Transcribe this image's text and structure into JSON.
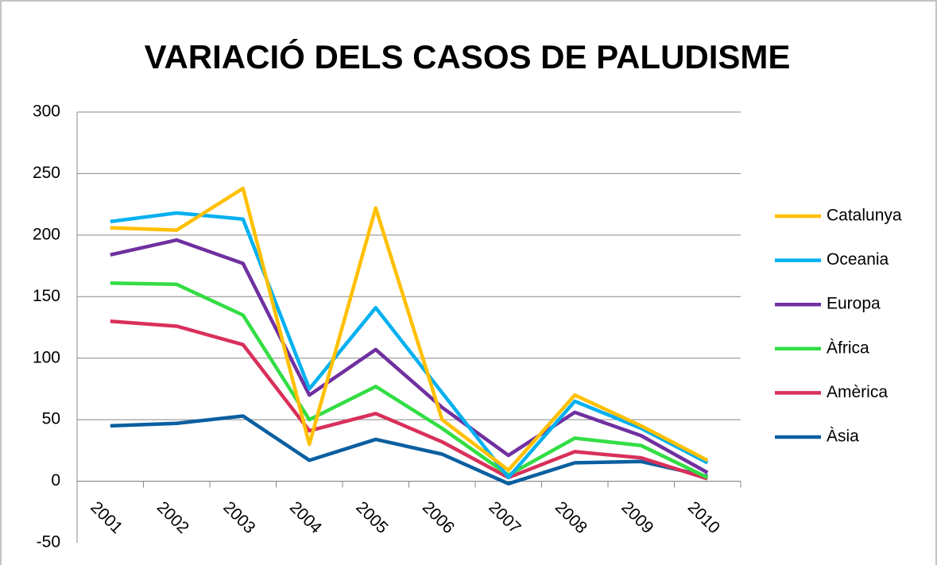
{
  "chart_data": {
    "type": "line",
    "title": "VARIACIÓ DELS CASOS DE PALUDISME",
    "categories": [
      "2001",
      "2002",
      "2003",
      "2004",
      "2005",
      "2006",
      "2007",
      "2008",
      "2009",
      "2010"
    ],
    "series": [
      {
        "name": "Catalunya",
        "color": "#FFC000",
        "values": [
          206,
          204,
          238,
          30,
          222,
          50,
          9,
          70,
          45,
          17
        ]
      },
      {
        "name": "Oceania",
        "color": "#00B0F0",
        "values": [
          211,
          218,
          213,
          75,
          141,
          72,
          3,
          65,
          43,
          15
        ]
      },
      {
        "name": "Europa",
        "color": "#7030A0",
        "values": [
          184,
          196,
          177,
          70,
          107,
          60,
          21,
          56,
          37,
          7
        ]
      },
      {
        "name": "Àfrica",
        "color": "#33DD44",
        "values": [
          161,
          160,
          135,
          50,
          77,
          43,
          5,
          35,
          29,
          3
        ]
      },
      {
        "name": "Amèrica",
        "color": "#D9305A",
        "values": [
          130,
          126,
          111,
          41,
          55,
          32,
          3,
          24,
          19,
          2
        ]
      },
      {
        "name": "Àsia",
        "color": "#0A5FA0",
        "values": [
          45,
          47,
          53,
          17,
          34,
          22,
          -2,
          15,
          16,
          4
        ]
      }
    ],
    "ylim": [
      -50,
      300
    ],
    "yticks": [
      -50,
      0,
      50,
      100,
      150,
      200,
      250,
      300
    ],
    "grid": true,
    "legend": "right"
  }
}
